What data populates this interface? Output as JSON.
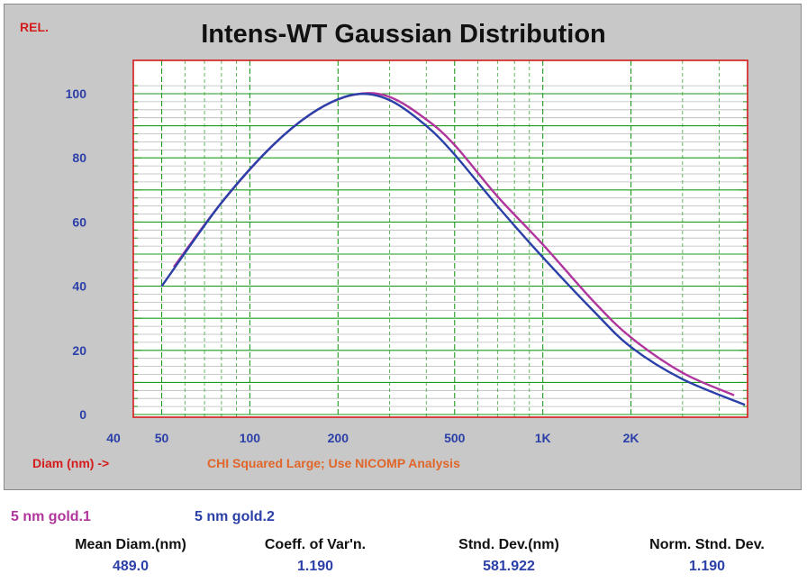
{
  "chart_data": {
    "type": "line",
    "title": "Intens-WT Gaussian Distribution",
    "ylabel": "REL.",
    "xlabel": "Diam (nm) ->",
    "x_scale": "log",
    "xlim": [
      40,
      5000
    ],
    "ylim": [
      0,
      100
    ],
    "y_ticks": [
      0,
      20,
      40,
      60,
      80,
      100
    ],
    "x_ticks": [
      {
        "value": 40,
        "label": "40"
      },
      {
        "value": 50,
        "label": "50"
      },
      {
        "value": 100,
        "label": "100"
      },
      {
        "value": 200,
        "label": "200"
      },
      {
        "value": 500,
        "label": "500"
      },
      {
        "value": 1000,
        "label": "1K"
      },
      {
        "value": 2000,
        "label": "2K"
      }
    ],
    "grid": true,
    "annotation": "CHI Squared Large; Use NICOMP Analysis",
    "series": [
      {
        "name": "5 nm gold.1",
        "color": "#b0359c",
        "x": [
          55,
          80,
          120,
          170,
          230,
          300,
          400,
          500,
          700,
          1000,
          1500,
          2000,
          3000,
          4500
        ],
        "y": [
          46,
          66,
          84,
          95,
          99.8,
          99,
          92,
          84,
          68,
          53,
          35,
          24,
          13,
          6
        ]
      },
      {
        "name": "5 nm gold.2",
        "color": "#2b3fa8",
        "x": [
          50,
          80,
          120,
          170,
          230,
          300,
          400,
          500,
          700,
          1000,
          1500,
          2000,
          3000,
          4900
        ],
        "y": [
          40,
          66,
          84,
          95,
          99.8,
          98,
          90,
          81,
          65,
          49,
          32,
          21,
          11,
          3
        ]
      }
    ]
  },
  "stats": [
    {
      "label": "Mean Diam.(nm)",
      "value": "489.0"
    },
    {
      "label": "Coeff. of Var'n.",
      "value": "1.190"
    },
    {
      "label": "Stnd. Dev.(nm)",
      "value": "581.922"
    },
    {
      "label": "Norm. Stnd. Dev.",
      "value": "1.190"
    }
  ],
  "colors": {
    "accent_red": "#d41c1c",
    "note_orange": "#e0662a",
    "grid_green": "#1e9a1e",
    "grid_gray": "#b4b4b4"
  }
}
